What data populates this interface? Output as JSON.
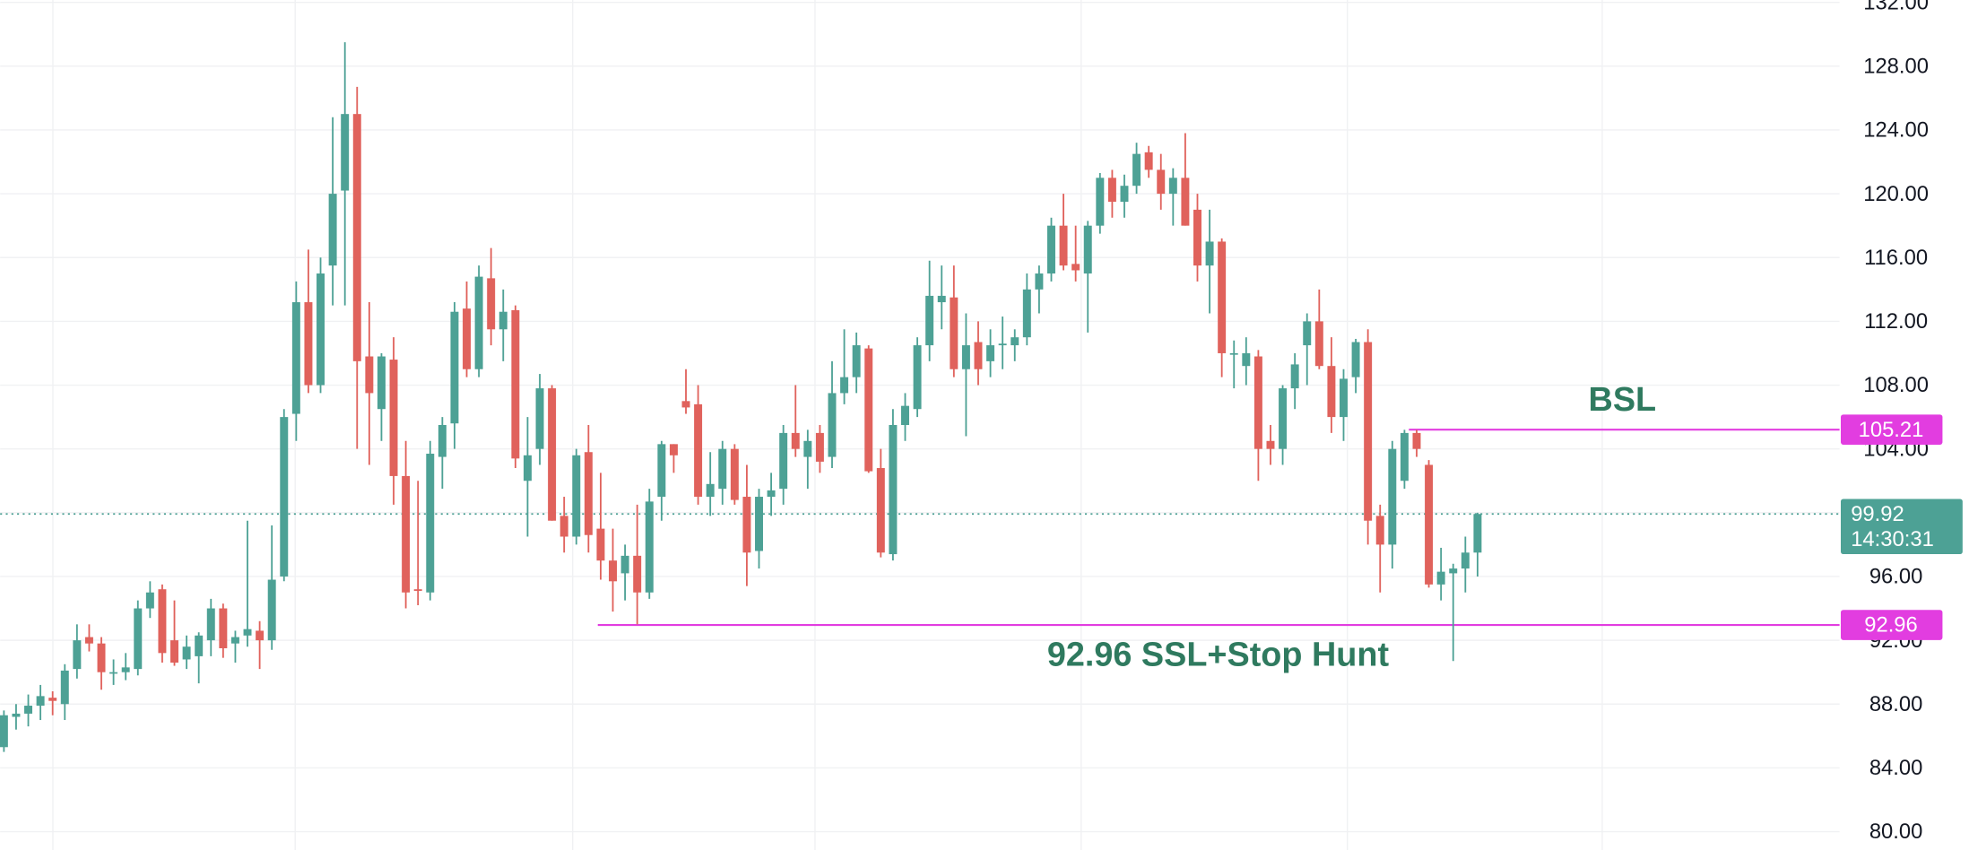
{
  "chart_data": {
    "type": "candlestick",
    "up_color": "#4da195",
    "down_color": "#e0625c",
    "level_color": "#e23de0",
    "annotation_color": "#2f7a5f",
    "grid": true,
    "ylim": [
      78.85,
      132.15
    ],
    "yticks": [
      {
        "value": 80,
        "label": "80.00"
      },
      {
        "value": 84,
        "label": "84.00"
      },
      {
        "value": 88,
        "label": "88.00"
      },
      {
        "value": 92,
        "label": "92.00"
      },
      {
        "value": 96,
        "label": "96.00"
      },
      {
        "value": 100,
        "label": "100.00"
      },
      {
        "value": 104,
        "label": "104.00"
      },
      {
        "value": 108,
        "label": "108.00"
      },
      {
        "value": 112,
        "label": "112.00"
      },
      {
        "value": 116,
        "label": "116.00"
      },
      {
        "value": 120,
        "label": "120.00"
      },
      {
        "value": 124,
        "label": "124.00"
      },
      {
        "value": 128,
        "label": "128.00"
      },
      {
        "value": 132,
        "label": "132.00"
      }
    ],
    "levels": [
      {
        "value": 105.21,
        "label": "105.21"
      },
      {
        "value": 92.96,
        "label": "92.96"
      }
    ],
    "last_price": {
      "value": 99.92,
      "label": "99.92",
      "countdown": "14:30:31"
    },
    "annotations": [
      "BSL",
      "92.96 SSL+Stop Hunt"
    ],
    "candles": [
      [
        85.3,
        87.6,
        85.0,
        87.3
      ],
      [
        87.2,
        88.0,
        86.4,
        87.4
      ],
      [
        87.4,
        88.6,
        86.6,
        87.9
      ],
      [
        87.9,
        89.2,
        87.0,
        88.5
      ],
      [
        88.4,
        88.8,
        87.3,
        88.2
      ],
      [
        88.0,
        90.5,
        87.0,
        90.1
      ],
      [
        90.2,
        93.0,
        89.6,
        92.0
      ],
      [
        92.2,
        93.0,
        91.3,
        91.8
      ],
      [
        91.8,
        92.2,
        88.9,
        90.0
      ],
      [
        90.0,
        90.8,
        89.2,
        90.0
      ],
      [
        90.0,
        91.2,
        89.5,
        90.3
      ],
      [
        90.2,
        94.5,
        89.8,
        94.0
      ],
      [
        94.0,
        95.7,
        93.4,
        95.0
      ],
      [
        95.2,
        95.5,
        90.6,
        91.2
      ],
      [
        92.0,
        94.5,
        90.4,
        90.6
      ],
      [
        90.8,
        92.3,
        90.2,
        91.6
      ],
      [
        91.0,
        92.5,
        89.3,
        92.3
      ],
      [
        92.0,
        94.6,
        91.0,
        94.0
      ],
      [
        94.0,
        94.3,
        90.9,
        91.5
      ],
      [
        91.8,
        92.6,
        90.6,
        92.2
      ],
      [
        92.3,
        99.5,
        91.6,
        92.7
      ],
      [
        92.6,
        93.2,
        90.2,
        92.0
      ],
      [
        92.0,
        99.2,
        91.4,
        95.8
      ],
      [
        96.0,
        106.5,
        95.7,
        106.0
      ],
      [
        106.2,
        114.5,
        104.5,
        113.2
      ],
      [
        113.2,
        116.5,
        107.5,
        108.0
      ],
      [
        108.0,
        116.0,
        107.5,
        115.0
      ],
      [
        115.5,
        124.8,
        113.0,
        120.0
      ],
      [
        120.2,
        129.5,
        113.0,
        125.0
      ],
      [
        125.0,
        126.7,
        104.0,
        109.5
      ],
      [
        109.8,
        113.2,
        103.0,
        107.5
      ],
      [
        106.5,
        110.0,
        104.5,
        109.8
      ],
      [
        109.6,
        111.0,
        100.5,
        102.3
      ],
      [
        102.3,
        104.5,
        94.0,
        95.0
      ],
      [
        95.2,
        102.0,
        94.2,
        95.1
      ],
      [
        95.0,
        104.5,
        94.5,
        103.7
      ],
      [
        103.5,
        106.0,
        101.5,
        105.5
      ],
      [
        105.6,
        113.2,
        104.0,
        112.6
      ],
      [
        112.8,
        114.5,
        108.5,
        109.0
      ],
      [
        109.0,
        115.5,
        108.5,
        114.8
      ],
      [
        114.7,
        116.6,
        110.5,
        111.5
      ],
      [
        111.5,
        114.0,
        109.5,
        112.6
      ],
      [
        112.7,
        113.0,
        102.8,
        103.4
      ],
      [
        102.0,
        106.0,
        98.5,
        103.6
      ],
      [
        104.0,
        108.7,
        103.0,
        107.8
      ],
      [
        107.8,
        108.0,
        99.5,
        99.5
      ],
      [
        99.8,
        101.0,
        97.5,
        98.5
      ],
      [
        98.5,
        104.0,
        98.0,
        103.6
      ],
      [
        103.8,
        105.5,
        97.5,
        98.6
      ],
      [
        99.0,
        102.5,
        95.8,
        97.0
      ],
      [
        97.0,
        99.0,
        93.8,
        95.7
      ],
      [
        96.2,
        98.0,
        94.5,
        97.3
      ],
      [
        97.3,
        100.5,
        93.0,
        95.0
      ],
      [
        95.0,
        101.5,
        94.6,
        100.7
      ],
      [
        101.0,
        104.5,
        99.5,
        104.3
      ],
      [
        104.3,
        104.3,
        102.5,
        103.6
      ],
      [
        107.0,
        109.0,
        106.2,
        106.6
      ],
      [
        106.8,
        108.0,
        100.5,
        101.0
      ],
      [
        101.0,
        103.8,
        99.8,
        101.8
      ],
      [
        101.5,
        104.5,
        100.5,
        104.0
      ],
      [
        104.0,
        104.3,
        100.5,
        100.8
      ],
      [
        101.0,
        103.0,
        95.4,
        97.5
      ],
      [
        97.6,
        101.5,
        96.5,
        101.0
      ],
      [
        101.0,
        102.5,
        99.8,
        101.4
      ],
      [
        101.5,
        105.5,
        100.5,
        105.0
      ],
      [
        105.0,
        108.0,
        103.5,
        104.0
      ],
      [
        103.5,
        105.2,
        101.5,
        104.5
      ],
      [
        105.0,
        105.5,
        102.5,
        103.2
      ],
      [
        103.5,
        109.5,
        102.8,
        107.5
      ],
      [
        107.5,
        111.5,
        106.8,
        108.5
      ],
      [
        108.5,
        111.3,
        107.5,
        110.5
      ],
      [
        110.3,
        110.5,
        102.5,
        102.6
      ],
      [
        102.8,
        104.0,
        97.2,
        97.5
      ],
      [
        97.4,
        106.5,
        97.0,
        105.5
      ],
      [
        105.5,
        107.5,
        104.5,
        106.7
      ],
      [
        106.5,
        111.0,
        106.0,
        110.5
      ],
      [
        110.5,
        115.8,
        109.5,
        113.6
      ],
      [
        113.2,
        115.5,
        111.5,
        113.6
      ],
      [
        113.5,
        115.5,
        108.5,
        109.0
      ],
      [
        109.0,
        112.5,
        104.8,
        110.5
      ],
      [
        110.7,
        112.0,
        108.0,
        109.0
      ],
      [
        109.5,
        111.5,
        108.5,
        110.5
      ],
      [
        110.5,
        112.3,
        109.0,
        110.6
      ],
      [
        110.5,
        111.5,
        109.5,
        111.0
      ],
      [
        111.0,
        115.0,
        110.5,
        114.0
      ],
      [
        114.0,
        115.5,
        112.5,
        115.0
      ],
      [
        115.0,
        118.5,
        114.5,
        118.0
      ],
      [
        118.0,
        120.0,
        115.2,
        115.5
      ],
      [
        115.6,
        118.0,
        114.5,
        115.2
      ],
      [
        115.0,
        118.3,
        111.3,
        118.0
      ],
      [
        118.0,
        121.3,
        117.5,
        121.0
      ],
      [
        121.0,
        121.5,
        118.5,
        119.5
      ],
      [
        119.5,
        121.2,
        118.5,
        120.5
      ],
      [
        120.5,
        123.2,
        120.0,
        122.5
      ],
      [
        122.6,
        123.0,
        121.0,
        121.5
      ],
      [
        121.5,
        122.5,
        119.0,
        120.0
      ],
      [
        120.0,
        121.6,
        118.0,
        121.0
      ],
      [
        121.0,
        123.8,
        118.0,
        118.0
      ],
      [
        119.0,
        120.0,
        114.5,
        115.5
      ],
      [
        115.5,
        119.0,
        112.5,
        117.0
      ],
      [
        117.0,
        117.2,
        108.5,
        110.0
      ],
      [
        110.0,
        110.8,
        107.8,
        110.0
      ],
      [
        109.2,
        111.0,
        108.0,
        110.0
      ],
      [
        109.8,
        110.2,
        102.0,
        104.0
      ],
      [
        104.5,
        105.5,
        103.0,
        104.0
      ],
      [
        104.0,
        108.0,
        103.0,
        107.8
      ],
      [
        107.8,
        110.0,
        106.5,
        109.3
      ],
      [
        110.5,
        112.5,
        108.0,
        112.0
      ],
      [
        112.0,
        114.0,
        109.0,
        109.2
      ],
      [
        109.2,
        111.0,
        105.0,
        106.0
      ],
      [
        106.0,
        109.0,
        104.5,
        108.4
      ],
      [
        108.5,
        110.9,
        107.5,
        110.7
      ],
      [
        110.7,
        111.5,
        98.0,
        99.5
      ],
      [
        99.8,
        100.5,
        95.0,
        98.0
      ],
      [
        98.0,
        104.5,
        96.5,
        104.0
      ],
      [
        102.0,
        105.2,
        101.5,
        105.0
      ],
      [
        105.0,
        105.2,
        103.5,
        104.0
      ],
      [
        103.0,
        103.3,
        95.3,
        95.5
      ],
      [
        95.5,
        97.8,
        94.5,
        96.3
      ],
      [
        96.2,
        96.8,
        90.7,
        96.5
      ],
      [
        96.5,
        98.5,
        95.0,
        97.5
      ],
      [
        97.5,
        100.0,
        96.0,
        99.92
      ]
    ]
  }
}
